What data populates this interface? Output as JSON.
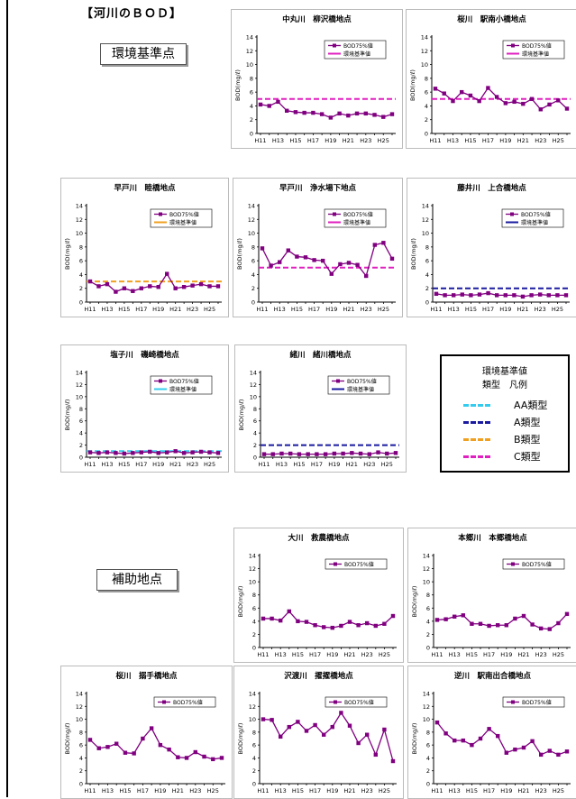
{
  "page": {
    "section_title": "【河川のＢＯＤ】",
    "env_label": "環境基準点",
    "aux_label": "補助地点"
  },
  "legend": {
    "title": "環境基準値",
    "subtitle": "類型　凡例",
    "items": [
      {
        "label": "AA類型",
        "color": "#33ccee"
      },
      {
        "label": "A類型",
        "color": "#1a1aa0"
      },
      {
        "label": "B類型",
        "color": "#f0a020"
      },
      {
        "label": "C類型",
        "color": "#e020c0"
      }
    ]
  },
  "colors": {
    "series": "#800080",
    "standard_c": "#e020c0",
    "standard_b": "#f0a020",
    "standard_a": "#1a1aa0",
    "standard_aa": "#33ccee"
  },
  "chart_data": [
    {
      "type": "line",
      "title": "中丸川　柳沢橋地点",
      "ylabel": "BOD(mg/ℓ)",
      "ylim": [
        0,
        14
      ],
      "yticks": [
        0,
        2,
        4,
        6,
        8,
        10,
        12,
        14
      ],
      "x": [
        "H11",
        "H12",
        "H13",
        "H14",
        "H15",
        "H16",
        "H17",
        "H18",
        "H19",
        "H20",
        "H21",
        "H22",
        "H23",
        "H24",
        "H25",
        "H26"
      ],
      "xtick_labels": [
        "H11",
        "H13",
        "H15",
        "H17",
        "H19",
        "H21",
        "H23",
        "H25"
      ],
      "series": [
        {
          "name": "BOD75%値",
          "values": [
            4.2,
            4.0,
            4.6,
            3.3,
            3.1,
            3.0,
            3.0,
            2.8,
            2.3,
            2.9,
            2.6,
            2.9,
            2.9,
            2.7,
            2.4,
            2.8
          ]
        }
      ],
      "standard": {
        "name": "環境基準値",
        "value": 5,
        "color": "#e020c0"
      },
      "grid": false,
      "legend": "top-right"
    },
    {
      "type": "line",
      "title": "桜川　駅南小橋地点",
      "ylabel": "BOD(mg/ℓ)",
      "ylim": [
        0,
        14
      ],
      "yticks": [
        0,
        2,
        4,
        6,
        8,
        10,
        12,
        14
      ],
      "x": [
        "H11",
        "H12",
        "H13",
        "H14",
        "H15",
        "H16",
        "H17",
        "H18",
        "H19",
        "H20",
        "H21",
        "H22",
        "H23",
        "H24",
        "H25",
        "H26"
      ],
      "xtick_labels": [
        "H11",
        "H13",
        "H15",
        "H17",
        "H19",
        "H21",
        "H23",
        "H25"
      ],
      "series": [
        {
          "name": "BOD75%値",
          "values": [
            6.5,
            5.8,
            4.7,
            6.0,
            5.5,
            4.7,
            6.6,
            5.3,
            4.4,
            4.6,
            4.3,
            5.0,
            3.5,
            4.2,
            4.8,
            3.6
          ]
        }
      ],
      "standard": {
        "name": "環境基準値",
        "value": 5,
        "color": "#e020c0"
      },
      "grid": false,
      "legend": "top-right"
    },
    {
      "type": "line",
      "title": "早戸川　睦橋地点",
      "ylabel": "BOD(mg/ℓ)",
      "ylim": [
        0,
        14
      ],
      "yticks": [
        0,
        2,
        4,
        6,
        8,
        10,
        12,
        14
      ],
      "x": [
        "H11",
        "H12",
        "H13",
        "H14",
        "H15",
        "H16",
        "H17",
        "H18",
        "H19",
        "H20",
        "H21",
        "H22",
        "H23",
        "H24",
        "H25",
        "H26"
      ],
      "xtick_labels": [
        "H11",
        "H13",
        "H15",
        "H17",
        "H19",
        "H21",
        "H23",
        "H25"
      ],
      "series": [
        {
          "name": "BOD75%値",
          "values": [
            3.0,
            2.3,
            2.6,
            1.5,
            2.0,
            1.6,
            2.0,
            2.3,
            2.2,
            4.1,
            2.0,
            2.2,
            2.4,
            2.6,
            2.3,
            2.3
          ]
        }
      ],
      "standard": {
        "name": "環境基準値",
        "value": 3,
        "color": "#f0a020"
      },
      "grid": false,
      "legend": "top-right"
    },
    {
      "type": "line",
      "title": "早戸川　浄水場下地点",
      "ylabel": "BOD(mg/ℓ)",
      "ylim": [
        0,
        14
      ],
      "yticks": [
        0,
        2,
        4,
        6,
        8,
        10,
        12,
        14
      ],
      "x": [
        "H11",
        "H12",
        "H13",
        "H14",
        "H15",
        "H16",
        "H17",
        "H18",
        "H19",
        "H20",
        "H21",
        "H22",
        "H23",
        "H24",
        "H25",
        "H26"
      ],
      "xtick_labels": [
        "H11",
        "H13",
        "H15",
        "H17",
        "H19",
        "H21",
        "H23",
        "H25"
      ],
      "series": [
        {
          "name": "BOD75%値",
          "values": [
            7.8,
            5.3,
            5.8,
            7.5,
            6.6,
            6.5,
            6.1,
            6.0,
            4.1,
            5.5,
            5.7,
            5.4,
            3.8,
            8.3,
            8.6,
            6.3
          ]
        }
      ],
      "standard": {
        "name": "環境基準値",
        "value": 5,
        "color": "#e020c0"
      },
      "grid": false,
      "legend": "top-right"
    },
    {
      "type": "line",
      "title": "藤井川　上合橋地点",
      "ylabel": "BOD(mg/ℓ)",
      "ylim": [
        0,
        14
      ],
      "yticks": [
        0,
        2,
        4,
        6,
        8,
        10,
        12,
        14
      ],
      "x": [
        "H11",
        "H12",
        "H13",
        "H14",
        "H15",
        "H16",
        "H17",
        "H18",
        "H19",
        "H20",
        "H21",
        "H22",
        "H23",
        "H24",
        "H25",
        "H26"
      ],
      "xtick_labels": [
        "H11",
        "H13",
        "H15",
        "H17",
        "H19",
        "H21",
        "H23",
        "H25"
      ],
      "series": [
        {
          "name": "BOD75%値",
          "values": [
            1.2,
            1.0,
            1.0,
            1.1,
            1.0,
            1.1,
            1.3,
            1.0,
            1.0,
            1.0,
            0.8,
            1.0,
            1.1,
            1.0,
            1.0,
            1.0
          ]
        }
      ],
      "standard": {
        "name": "環境基準値",
        "value": 2,
        "color": "#1a1aa0"
      },
      "grid": false,
      "legend": "top-right"
    },
    {
      "type": "line",
      "title": "塩子川　磯崎橋地点",
      "ylabel": "BOD(mg/ℓ)",
      "ylim": [
        0,
        14
      ],
      "yticks": [
        0,
        2,
        4,
        6,
        8,
        10,
        12,
        14
      ],
      "x": [
        "H11",
        "H12",
        "H13",
        "H14",
        "H15",
        "H16",
        "H17",
        "H18",
        "H19",
        "H20",
        "H21",
        "H22",
        "H23",
        "H24",
        "H25",
        "H26"
      ],
      "xtick_labels": [
        "H11",
        "H13",
        "H15",
        "H17",
        "H19",
        "H21",
        "H23",
        "H25"
      ],
      "series": [
        {
          "name": "BOD75%値",
          "values": [
            0.8,
            0.7,
            0.8,
            0.7,
            0.6,
            0.7,
            0.8,
            0.9,
            0.7,
            0.8,
            1.0,
            0.7,
            0.8,
            0.9,
            0.8,
            0.7
          ]
        }
      ],
      "standard": {
        "name": "環境基準値",
        "value": 1,
        "color": "#33ccee"
      },
      "grid": false,
      "legend": "top-right"
    },
    {
      "type": "line",
      "title": "緒川　緒川橋地点",
      "ylabel": "BOD(mg/ℓ)",
      "ylim": [
        0,
        14
      ],
      "yticks": [
        0,
        2,
        4,
        6,
        8,
        10,
        12,
        14
      ],
      "x": [
        "H11",
        "H12",
        "H13",
        "H14",
        "H15",
        "H16",
        "H17",
        "H18",
        "H19",
        "H20",
        "H21",
        "H22",
        "H23",
        "H24",
        "H25",
        "H26"
      ],
      "xtick_labels": [
        "H11",
        "H13",
        "H15",
        "H17",
        "H19",
        "H21",
        "H23",
        "H25"
      ],
      "series": [
        {
          "name": "BOD75%値",
          "values": [
            0.5,
            0.5,
            0.6,
            0.6,
            0.5,
            0.5,
            0.5,
            0.5,
            0.6,
            0.6,
            0.7,
            0.6,
            0.5,
            0.8,
            0.6,
            0.7
          ]
        }
      ],
      "standard": {
        "name": "環境基準値",
        "value": 2,
        "color": "#1a1aa0"
      },
      "grid": false,
      "legend": "top-right"
    },
    {
      "type": "line",
      "title": "大川　救農橋地点",
      "ylabel": "BOD(mg/ℓ)",
      "ylim": [
        0,
        14
      ],
      "yticks": [
        0,
        2,
        4,
        6,
        8,
        10,
        12,
        14
      ],
      "x": [
        "H11",
        "H12",
        "H13",
        "H14",
        "H15",
        "H16",
        "H17",
        "H18",
        "H19",
        "H20",
        "H21",
        "H22",
        "H23",
        "H24",
        "H25",
        "H26"
      ],
      "xtick_labels": [
        "H11",
        "H13",
        "H15",
        "H17",
        "H19",
        "H21",
        "H23",
        "H25"
      ],
      "series": [
        {
          "name": "BOD75%値",
          "values": [
            4.4,
            4.4,
            4.1,
            5.5,
            4.0,
            3.9,
            3.4,
            3.1,
            3.0,
            3.3,
            3.9,
            3.4,
            3.7,
            3.3,
            3.6,
            4.8
          ]
        }
      ],
      "standard": null,
      "grid": false,
      "legend": "top-right"
    },
    {
      "type": "line",
      "title": "本郷川　本郷橋地点",
      "ylabel": "BOD(mg/ℓ)",
      "ylim": [
        0,
        14
      ],
      "yticks": [
        0,
        2,
        4,
        6,
        8,
        10,
        12,
        14
      ],
      "x": [
        "H11",
        "H12",
        "H13",
        "H14",
        "H15",
        "H16",
        "H17",
        "H18",
        "H19",
        "H20",
        "H21",
        "H22",
        "H23",
        "H24",
        "H25",
        "H26"
      ],
      "xtick_labels": [
        "H11",
        "H13",
        "H15",
        "H17",
        "H19",
        "H21",
        "H23",
        "H25"
      ],
      "series": [
        {
          "name": "BOD75%値",
          "values": [
            4.2,
            4.3,
            4.7,
            4.9,
            3.6,
            3.6,
            3.3,
            3.4,
            3.4,
            4.4,
            4.8,
            3.5,
            2.9,
            2.8,
            3.7,
            5.1
          ]
        }
      ],
      "standard": null,
      "grid": false,
      "legend": "top-right"
    },
    {
      "type": "line",
      "title": "桜川　搦手橋地点",
      "ylabel": "BOD(mg/ℓ)",
      "ylim": [
        0,
        14
      ],
      "yticks": [
        0,
        2,
        4,
        6,
        8,
        10,
        12,
        14
      ],
      "x": [
        "H11",
        "H12",
        "H13",
        "H14",
        "H15",
        "H16",
        "H17",
        "H18",
        "H19",
        "H20",
        "H21",
        "H22",
        "H23",
        "H24",
        "H25",
        "H26"
      ],
      "xtick_labels": [
        "H11",
        "H13",
        "H15",
        "H17",
        "H19",
        "H21",
        "H23",
        "H25"
      ],
      "series": [
        {
          "name": "BOD75%値",
          "values": [
            6.8,
            5.5,
            5.7,
            6.2,
            4.8,
            4.7,
            7.0,
            8.6,
            6.0,
            5.3,
            4.1,
            4.0,
            4.9,
            4.2,
            3.8,
            4.0
          ]
        }
      ],
      "standard": null,
      "grid": false,
      "legend": "top-right"
    },
    {
      "type": "line",
      "title": "沢渡川　擢擢橋地点",
      "ylabel": "BOD(mg/ℓ)",
      "ylim": [
        0,
        14
      ],
      "yticks": [
        0,
        2,
        4,
        6,
        8,
        10,
        12,
        14
      ],
      "x": [
        "H11",
        "H12",
        "H13",
        "H14",
        "H15",
        "H16",
        "H17",
        "H18",
        "H19",
        "H20",
        "H21",
        "H22",
        "H23",
        "H24",
        "H25",
        "H26"
      ],
      "xtick_labels": [
        "H11",
        "H13",
        "H15",
        "H17",
        "H19",
        "H21",
        "H23",
        "H25"
      ],
      "series": [
        {
          "name": "BOD75%値",
          "values": [
            10.0,
            9.9,
            7.3,
            8.8,
            9.6,
            8.2,
            9.1,
            7.6,
            8.8,
            11.0,
            9.0,
            6.3,
            7.6,
            4.5,
            8.4,
            3.5
          ]
        }
      ],
      "standard": null,
      "grid": false,
      "legend": "top-right"
    },
    {
      "type": "line",
      "title": "逆川　駅南出合橋地点",
      "ylabel": "BOD(mg/ℓ)",
      "ylim": [
        0,
        14
      ],
      "yticks": [
        0,
        2,
        4,
        6,
        8,
        10,
        12,
        14
      ],
      "x": [
        "H11",
        "H12",
        "H13",
        "H14",
        "H15",
        "H16",
        "H17",
        "H18",
        "H19",
        "H20",
        "H21",
        "H22",
        "H23",
        "H24",
        "H25",
        "H26"
      ],
      "xtick_labels": [
        "H11",
        "H13",
        "H15",
        "H17",
        "H19",
        "H21",
        "H23",
        "H25"
      ],
      "series": [
        {
          "name": "BOD75%値",
          "values": [
            9.5,
            7.8,
            6.7,
            6.7,
            6.0,
            7.0,
            8.5,
            7.4,
            4.8,
            5.3,
            5.6,
            6.6,
            4.5,
            5.1,
            4.5,
            5.0
          ]
        }
      ],
      "standard": null,
      "grid": false,
      "legend": "top-right"
    }
  ]
}
